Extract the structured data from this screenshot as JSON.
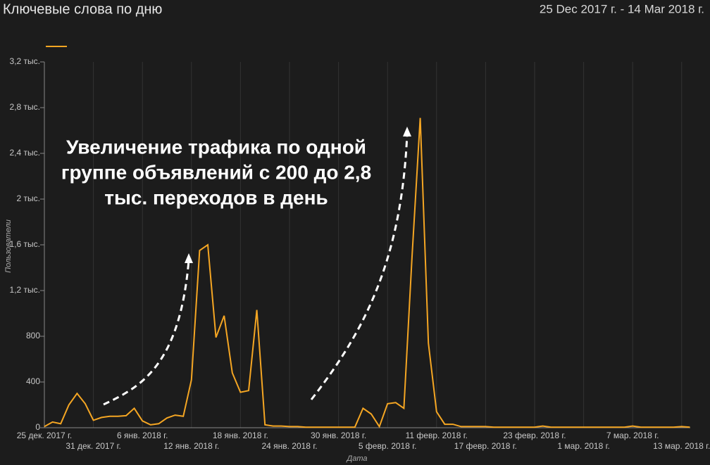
{
  "chart_data": {
    "type": "line",
    "title": "Ключевые слова по дню",
    "subtitle": "25 Dec 2017 г. - 14 Mar 2018 г.",
    "x_label": "Дата",
    "y_label": "Пользователи",
    "annotation": [
      "Увеличение трафика по одной",
      "группе объявлений с 200 до 2,8",
      "тыс. переходов в день"
    ],
    "categories": [
      "25 дек. 2017 г.",
      null,
      null,
      null,
      null,
      null,
      "31 дек. 2017 г.",
      null,
      null,
      null,
      null,
      null,
      "6 янв. 2018 г.",
      null,
      null,
      null,
      null,
      null,
      "12 янв. 2018 г.",
      null,
      null,
      null,
      null,
      null,
      "18 янв. 2018 г.",
      null,
      null,
      null,
      null,
      null,
      "24 янв. 2018 г.",
      null,
      null,
      null,
      null,
      null,
      "30 янв. 2018 г.",
      null,
      null,
      null,
      null,
      null,
      "5 февр. 2018 г.",
      null,
      null,
      null,
      null,
      null,
      "11 февр. 2018 г.",
      null,
      null,
      null,
      null,
      null,
      "17 февр. 2018 г.",
      null,
      null,
      null,
      null,
      null,
      "23 февр. 2018 г.",
      null,
      null,
      null,
      null,
      null,
      "1 мар. 2018 г.",
      null,
      null,
      null,
      null,
      null,
      "7 мар. 2018 г.",
      null,
      null,
      null,
      null,
      null,
      "13 мар. 2018 г.",
      null
    ],
    "series": [
      {
        "color": "#f5a623",
        "values": [
          10,
          50,
          35,
          200,
          300,
          210,
          65,
          90,
          100,
          100,
          105,
          170,
          60,
          25,
          35,
          85,
          110,
          100,
          420,
          1550,
          1600,
          790,
          980,
          480,
          310,
          325,
          1030,
          25,
          15,
          15,
          10,
          10,
          5,
          5,
          5,
          5,
          5,
          5,
          5,
          170,
          120,
          10,
          210,
          220,
          170,
          1500,
          2710,
          740,
          140,
          30,
          30,
          10,
          10,
          10,
          10,
          5,
          5,
          5,
          5,
          5,
          5,
          15,
          5,
          5,
          5,
          5,
          5,
          5,
          5,
          5,
          5,
          5,
          15,
          5,
          5,
          5,
          5,
          5,
          10,
          5
        ]
      }
    ],
    "ylim": [
      0,
      3200
    ],
    "yticks": [
      0,
      400,
      800,
      {
        "value": 1200,
        "label": "1,2 тыс."
      },
      {
        "value": 1600,
        "label": "1,6 тыс."
      },
      {
        "value": 2000,
        "label": "2 тыс."
      },
      {
        "value": 2400,
        "label": "2,4 тыс."
      },
      {
        "value": 2800,
        "label": "2,8 тыс."
      },
      {
        "value": 3200,
        "label": "3,2 тыс."
      }
    ],
    "grid": true
  }
}
